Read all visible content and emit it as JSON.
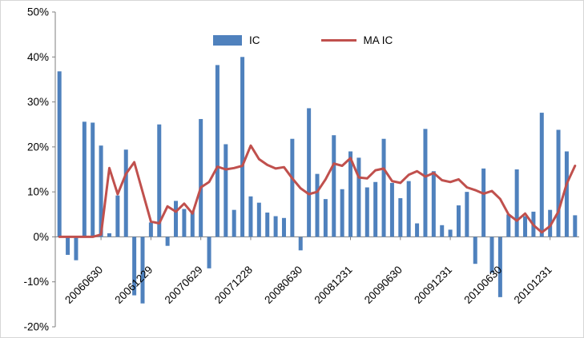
{
  "chart_data": {
    "type": "bar",
    "title": "",
    "grid": "off",
    "legend_position": "top-center",
    "background": "#ffffff",
    "axis_color": "#7f7f7f",
    "text_color": "#000000",
    "y_axis": {
      "min": -20,
      "max": 50,
      "format": "percent",
      "tick_values": [
        50,
        40,
        30,
        20,
        10,
        0,
        -10,
        -20
      ],
      "tick_labels": [
        "50%",
        "40%",
        "30%",
        "20%",
        "10%",
        "0%",
        "-10%",
        "-20%"
      ]
    },
    "x_axis": {
      "n_points": 63,
      "tick_indices": [
        6,
        12,
        18,
        24,
        30,
        36,
        42,
        48,
        54,
        60
      ],
      "tick_labels": [
        "20060630",
        "20061229",
        "20070629",
        "20071228",
        "20080630",
        "20081231",
        "20090630",
        "20091231",
        "20100630",
        "20101231"
      ]
    },
    "series": [
      {
        "name": "IC",
        "type": "bar",
        "color": "#4F81BD",
        "values": [
          36.8,
          -4.0,
          -5.2,
          25.6,
          25.4,
          20.3,
          0.8,
          9.2,
          19.4,
          -13.0,
          -14.8,
          3.2,
          25.0,
          -2.0,
          8.0,
          6.2,
          5.8,
          26.2,
          -7.0,
          38.2,
          20.6,
          6.0,
          40.0,
          9.0,
          7.6,
          5.4,
          4.6,
          4.2,
          21.8,
          -3.0,
          28.6,
          14.0,
          8.4,
          22.6,
          10.6,
          19.0,
          17.6,
          11.0,
          12.2,
          21.8,
          12.0,
          8.6,
          12.4,
          3.0,
          24.0,
          14.6,
          2.6,
          1.6,
          7.0,
          10.0,
          -6.0,
          15.2,
          -8.0,
          -13.4,
          5.0,
          15.0,
          4.6,
          5.6,
          27.6,
          6.0,
          23.8,
          19.0,
          4.8
        ]
      },
      {
        "name": "MA IC",
        "type": "line",
        "color": "#C0504D",
        "values": [
          0,
          0,
          0,
          0,
          0,
          0.5,
          15.3,
          9.5,
          14.0,
          16.6,
          10.0,
          3.4,
          3.0,
          6.8,
          5.6,
          7.4,
          5.2,
          11.0,
          12.2,
          15.6,
          15.0,
          15.3,
          15.8,
          20.3,
          17.3,
          16.0,
          15.2,
          15.5,
          13.0,
          10.8,
          9.5,
          10.0,
          12.8,
          16.3,
          15.8,
          17.5,
          13.2,
          13.0,
          14.8,
          15.2,
          12.4,
          12.0,
          13.8,
          14.6,
          13.4,
          14.2,
          12.6,
          12.2,
          12.8,
          11.0,
          10.4,
          9.6,
          10.2,
          8.4,
          5.0,
          3.6,
          5.2,
          2.6,
          1.0,
          2.4,
          5.6,
          11.8,
          15.8
        ]
      }
    ]
  }
}
